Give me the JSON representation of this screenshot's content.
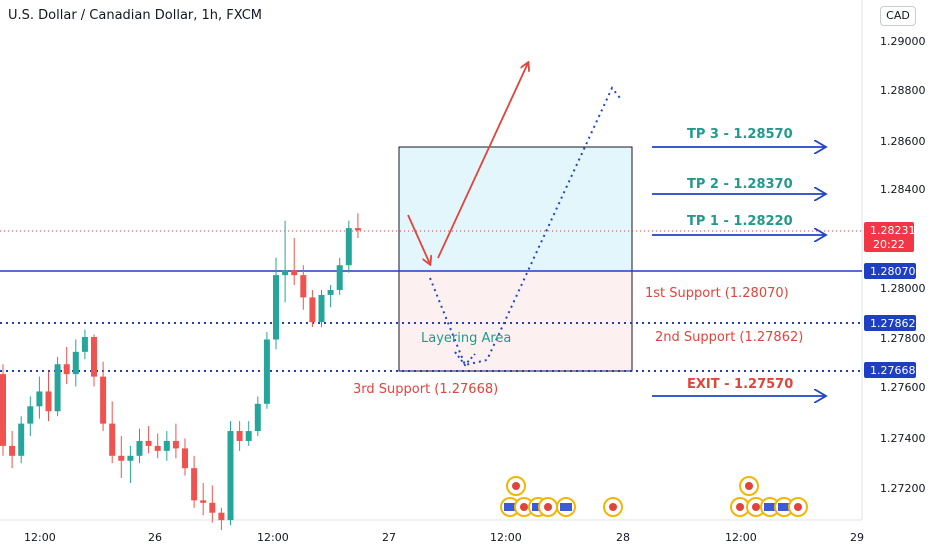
{
  "header": {
    "title": "U.S. Dollar / Canadian Dollar, 1h, FXCM",
    "currency": "CAD"
  },
  "price_axis": {
    "ticks": [
      "1.29000",
      "1.28800",
      "1.28600",
      "1.28400",
      "1.28000",
      "1.27800",
      "1.27600",
      "1.27400",
      "1.27200"
    ],
    "current_price": "1.28231",
    "countdown": "20:22",
    "level_tags": [
      "1.28070",
      "1.27862",
      "1.27668"
    ]
  },
  "time_axis": {
    "labels": [
      "12:00",
      "26",
      "12:00",
      "27",
      "12:00",
      "28",
      "12:00",
      "29"
    ]
  },
  "annotations": {
    "tp3": "TP 3 - 1.28570",
    "tp2": "TP 2 - 1.28370",
    "tp1": "TP 1 - 1.28220",
    "support1": "1st Support (1.28070)",
    "support2": "2nd Support (1.27862)",
    "support3": "3rd Support (1.27668)",
    "exit": "EXIT - 1.27570",
    "layering": "Layering Area"
  },
  "colors": {
    "up": "#26a69a",
    "down": "#ef5350",
    "level_line": "#1e3fbf",
    "tp_text": "#22998a",
    "support_text": "#e0453c",
    "tag_bg": "#1e3fbf",
    "current_tag_bg": "#f23645"
  },
  "chart_data": {
    "type": "candlestick",
    "symbol": "USDCAD",
    "timeframe": "1h",
    "ylim": [
      1.2712,
      1.2908
    ],
    "levels": {
      "resistance_support_1": 1.2807,
      "support_2": 1.27862,
      "support_3": 1.27668,
      "tp1": 1.2822,
      "tp2": 1.2837,
      "tp3": 1.2857,
      "exit": 1.2757,
      "current": 1.28231
    },
    "candles": [
      {
        "o": 1.2765,
        "h": 1.2769,
        "l": 1.2732,
        "c": 1.2736
      },
      {
        "o": 1.2736,
        "h": 1.2742,
        "l": 1.2727,
        "c": 1.2732
      },
      {
        "o": 1.2732,
        "h": 1.2748,
        "l": 1.2729,
        "c": 1.2745
      },
      {
        "o": 1.2745,
        "h": 1.2756,
        "l": 1.274,
        "c": 1.2752
      },
      {
        "o": 1.2752,
        "h": 1.2764,
        "l": 1.2747,
        "c": 1.2758
      },
      {
        "o": 1.2758,
        "h": 1.2766,
        "l": 1.2746,
        "c": 1.275
      },
      {
        "o": 1.275,
        "h": 1.2772,
        "l": 1.2748,
        "c": 1.2769
      },
      {
        "o": 1.2769,
        "h": 1.2776,
        "l": 1.2761,
        "c": 1.2765
      },
      {
        "o": 1.2765,
        "h": 1.2779,
        "l": 1.276,
        "c": 1.2774
      },
      {
        "o": 1.2774,
        "h": 1.2783,
        "l": 1.2771,
        "c": 1.278
      },
      {
        "o": 1.278,
        "h": 1.2781,
        "l": 1.276,
        "c": 1.2764
      },
      {
        "o": 1.2764,
        "h": 1.277,
        "l": 1.2742,
        "c": 1.2745
      },
      {
        "o": 1.2745,
        "h": 1.2754,
        "l": 1.2729,
        "c": 1.2732
      },
      {
        "o": 1.2732,
        "h": 1.274,
        "l": 1.2723,
        "c": 1.273
      },
      {
        "o": 1.273,
        "h": 1.2736,
        "l": 1.2721,
        "c": 1.2732
      },
      {
        "o": 1.2732,
        "h": 1.2743,
        "l": 1.2729,
        "c": 1.2738
      },
      {
        "o": 1.2738,
        "h": 1.2744,
        "l": 1.2733,
        "c": 1.2736
      },
      {
        "o": 1.2736,
        "h": 1.2741,
        "l": 1.2731,
        "c": 1.2734
      },
      {
        "o": 1.2734,
        "h": 1.2742,
        "l": 1.273,
        "c": 1.2738
      },
      {
        "o": 1.2738,
        "h": 1.2745,
        "l": 1.2731,
        "c": 1.2735
      },
      {
        "o": 1.2735,
        "h": 1.2739,
        "l": 1.2724,
        "c": 1.2727
      },
      {
        "o": 1.2727,
        "h": 1.2732,
        "l": 1.2711,
        "c": 1.2714
      },
      {
        "o": 1.2714,
        "h": 1.2721,
        "l": 1.2708,
        "c": 1.2713
      },
      {
        "o": 1.2713,
        "h": 1.272,
        "l": 1.2705,
        "c": 1.2709
      },
      {
        "o": 1.2709,
        "h": 1.2711,
        "l": 1.2702,
        "c": 1.2706
      },
      {
        "o": 1.2706,
        "h": 1.2746,
        "l": 1.2704,
        "c": 1.2742
      },
      {
        "o": 1.2742,
        "h": 1.2746,
        "l": 1.2734,
        "c": 1.2738
      },
      {
        "o": 1.2738,
        "h": 1.2746,
        "l": 1.2736,
        "c": 1.2742
      },
      {
        "o": 1.2742,
        "h": 1.2756,
        "l": 1.274,
        "c": 1.2753
      },
      {
        "o": 1.2753,
        "h": 1.2782,
        "l": 1.2751,
        "c": 1.2779
      },
      {
        "o": 1.2779,
        "h": 1.2812,
        "l": 1.2775,
        "c": 1.2805
      },
      {
        "o": 1.2805,
        "h": 1.2827,
        "l": 1.2794,
        "c": 1.2807
      },
      {
        "o": 1.2807,
        "h": 1.282,
        "l": 1.2801,
        "c": 1.2805
      },
      {
        "o": 1.2805,
        "h": 1.2809,
        "l": 1.2791,
        "c": 1.2796
      },
      {
        "o": 1.2796,
        "h": 1.2799,
        "l": 1.2784,
        "c": 1.2786
      },
      {
        "o": 1.2786,
        "h": 1.2799,
        "l": 1.2784,
        "c": 1.2797
      },
      {
        "o": 1.2797,
        "h": 1.2801,
        "l": 1.2792,
        "c": 1.2799
      },
      {
        "o": 1.2799,
        "h": 1.2812,
        "l": 1.2797,
        "c": 1.2809
      },
      {
        "o": 1.2809,
        "h": 1.2827,
        "l": 1.2806,
        "c": 1.2824
      },
      {
        "o": 1.2824,
        "h": 1.283,
        "l": 1.282,
        "c": 1.28231
      }
    ]
  }
}
